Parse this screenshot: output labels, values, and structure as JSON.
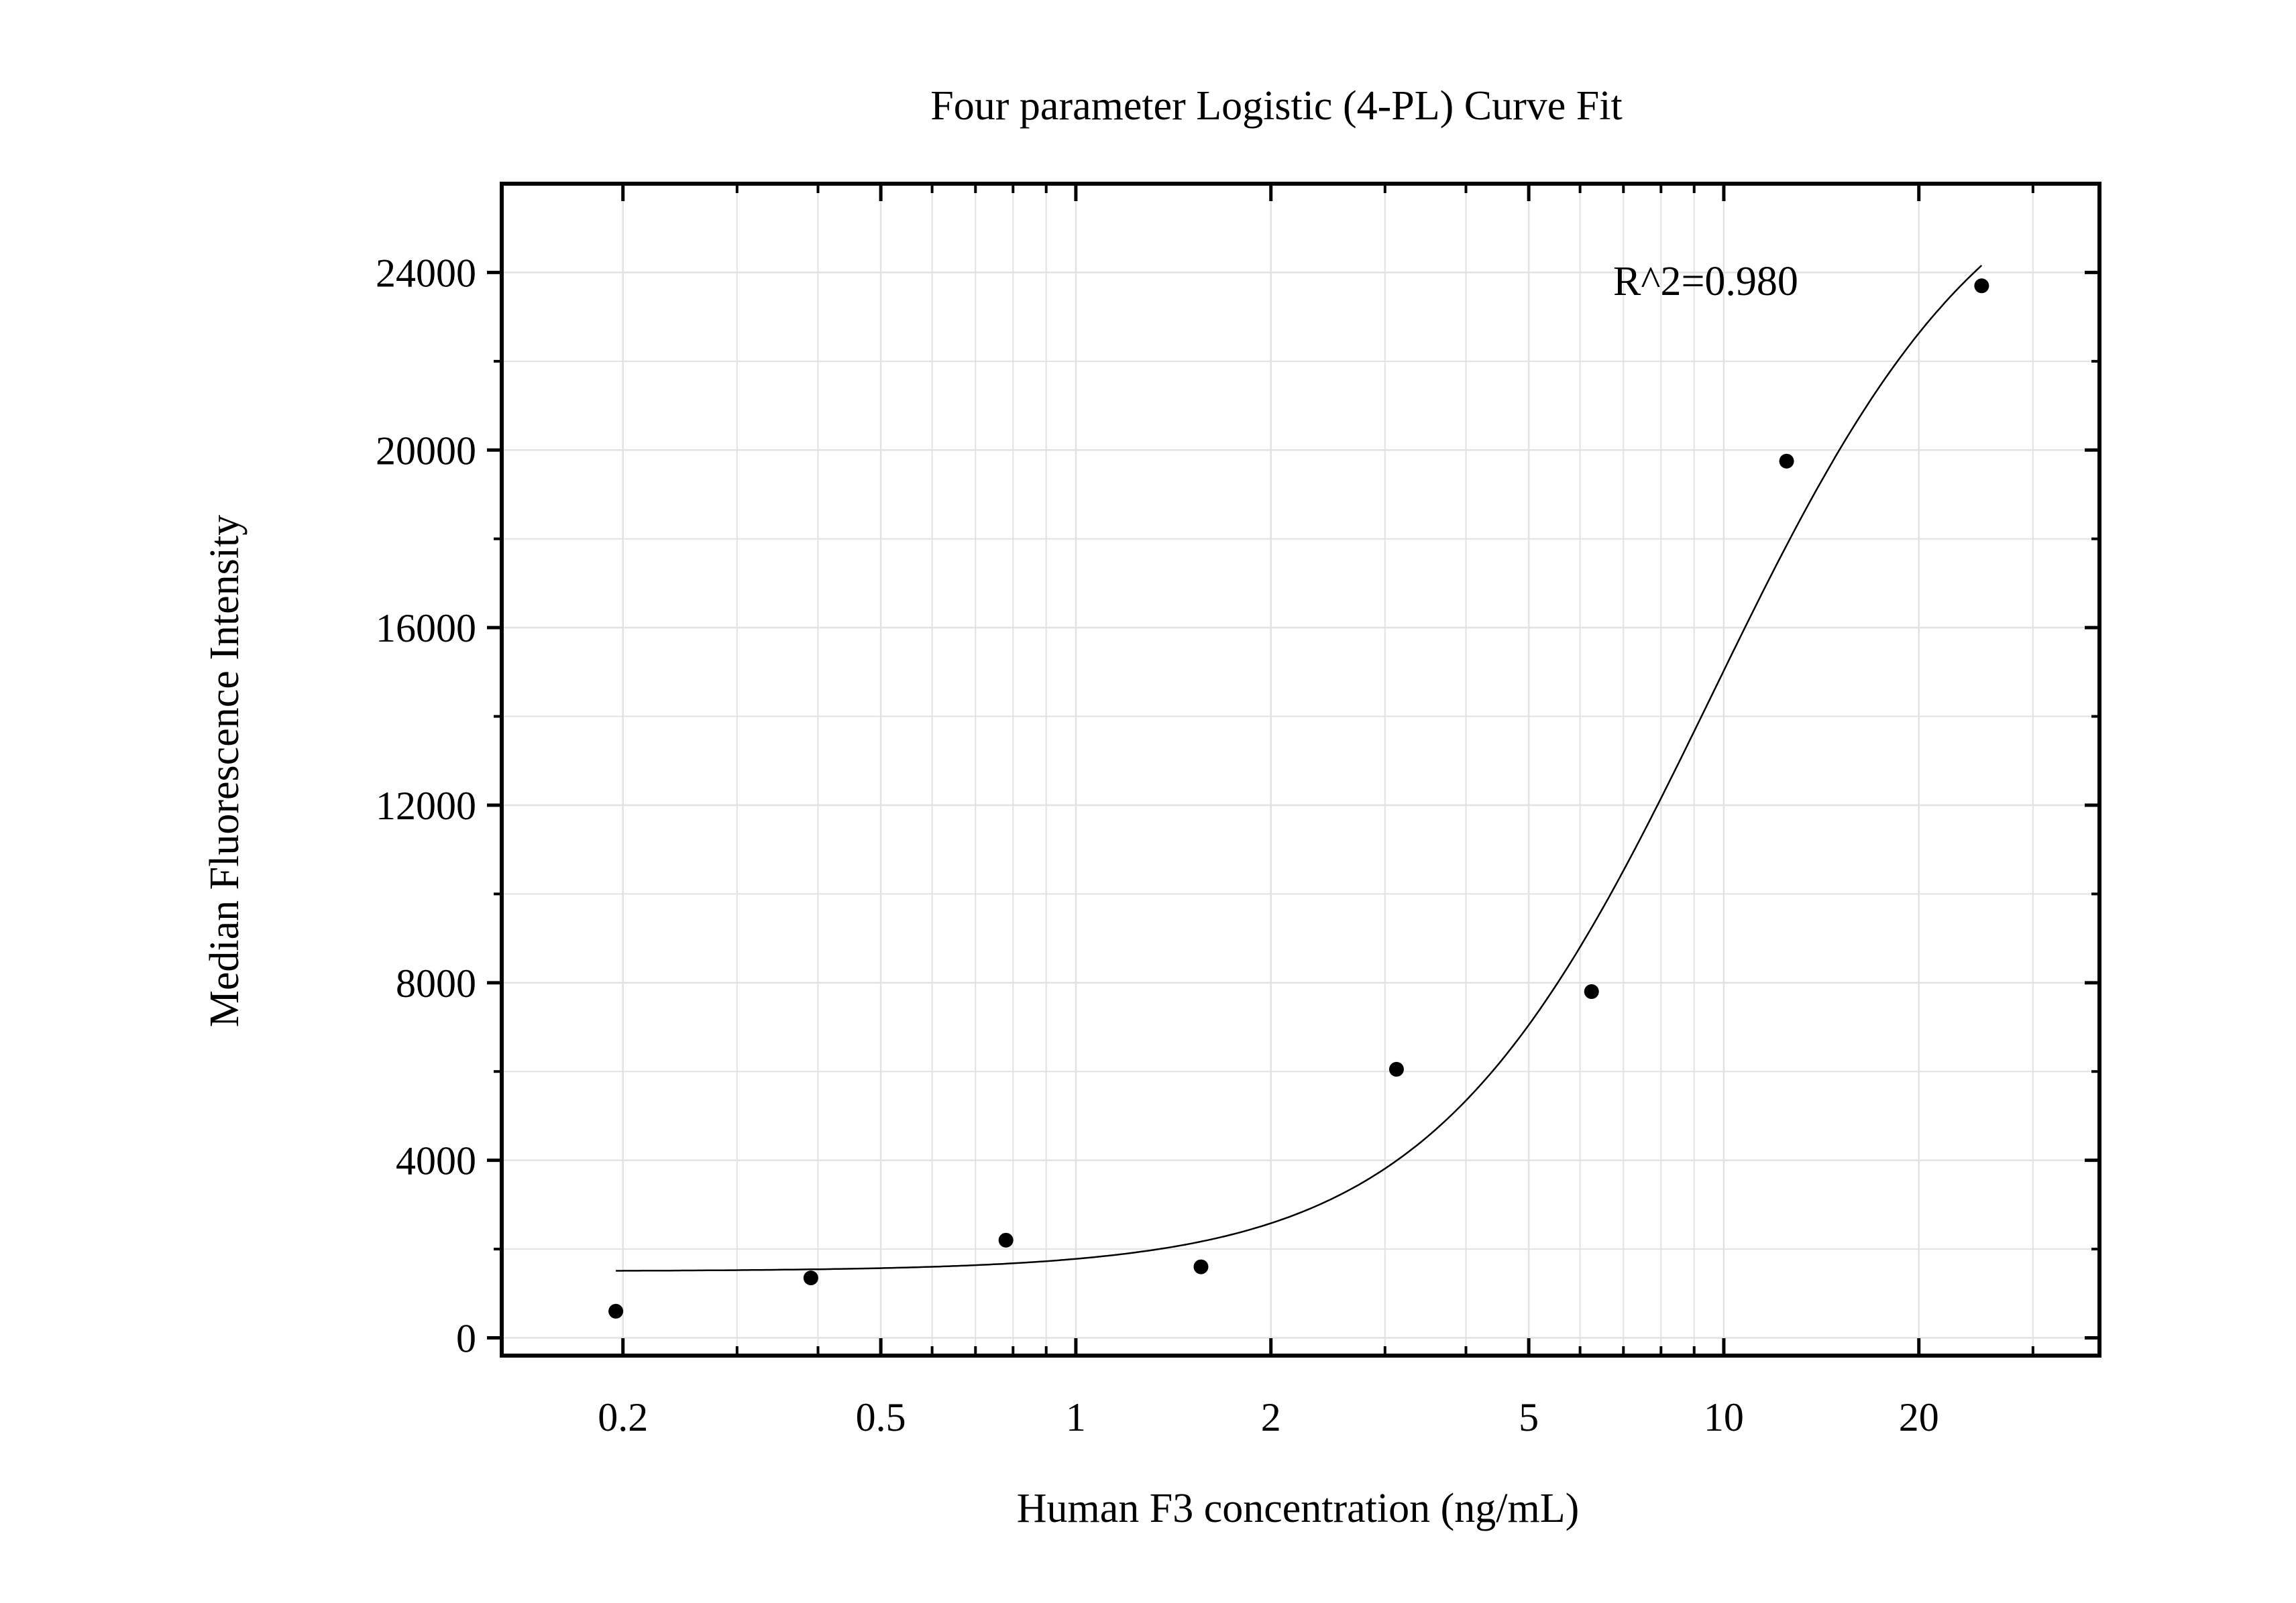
{
  "chart_data": {
    "type": "scatter",
    "title": "Four parameter Logistic (4-PL) Curve Fit",
    "xlabel": "Human F3 concentration (ng/mL)",
    "ylabel": "Median Fluorescence Intensity",
    "x_scale": "log",
    "xlim": [
      0.13,
      38
    ],
    "ylim": [
      -400,
      26000
    ],
    "x_ticks": [
      0.2,
      0.5,
      1,
      2,
      5,
      10,
      20
    ],
    "x_tick_labels": [
      "0.2",
      "0.5",
      "1",
      "2",
      "5",
      "10",
      "20"
    ],
    "y_ticks": [
      0,
      4000,
      8000,
      12000,
      16000,
      20000,
      24000
    ],
    "y_tick_labels": [
      "0",
      "4000",
      "8000",
      "12000",
      "16000",
      "20000",
      "24000"
    ],
    "grid": true,
    "annotation": "R^2=0.980",
    "series": [
      {
        "kind": "points",
        "x": [
          0.195,
          0.39,
          0.78,
          1.56,
          3.125,
          6.25,
          12.5,
          25
        ],
        "y": [
          600,
          1350,
          2200,
          1600,
          6050,
          7800,
          19750,
          23700
        ]
      },
      {
        "kind": "fit-curve",
        "model": "4PL",
        "params": {
          "bottom": 1500,
          "top": 27500,
          "ec50": 9.6,
          "hill": 2.0
        },
        "x_range": [
          0.195,
          25
        ]
      }
    ],
    "colors": {
      "points": "#000000",
      "curve": "#000000",
      "grid": "#e2e2e2",
      "frame": "#000000"
    }
  }
}
